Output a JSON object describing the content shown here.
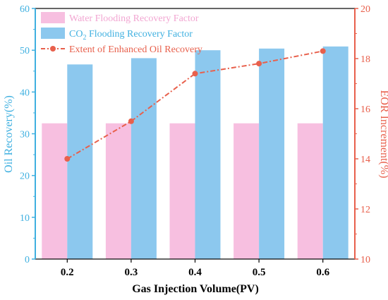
{
  "chart_data": {
    "type": "bar",
    "categories": [
      "0.2",
      "0.3",
      "0.4",
      "0.5",
      "0.6"
    ],
    "series": [
      {
        "name": "Water Flooding Recovery Factor",
        "kind": "bar",
        "axis": "left",
        "values": [
          32.5,
          32.5,
          32.5,
          32.5,
          32.5
        ],
        "color": "#f7bfe0"
      },
      {
        "name": "CO₂ Flooding Recovery Factor",
        "name_parts": [
          "CO",
          "2",
          " Flooding Recovery Factor"
        ],
        "kind": "bar",
        "axis": "left",
        "values": [
          46.6,
          48.1,
          50.0,
          50.4,
          50.9
        ],
        "color": "#8cc8ee"
      },
      {
        "name": "Extent of Enhanced Oil Recovery",
        "kind": "line",
        "axis": "right",
        "values": [
          14.0,
          15.5,
          17.4,
          17.8,
          18.3
        ],
        "color": "#e8604c"
      }
    ],
    "xlabel": "Gas Injection Volume(PV)",
    "ylabel_left": "Oil Recovery(%)",
    "ylabel_right": "EOR Increment(%)",
    "ylim_left": [
      0,
      60
    ],
    "ylim_right": [
      10,
      20
    ],
    "yticks_left": [
      "0",
      "10",
      "20",
      "30",
      "40",
      "50",
      "60"
    ],
    "yticks_right": [
      "10",
      "12",
      "14",
      "16",
      "18",
      "20"
    ],
    "left_axis_color": "#3fb0e0",
    "right_axis_color": "#e8604c",
    "legend_position": "top-left",
    "grid": false
  }
}
